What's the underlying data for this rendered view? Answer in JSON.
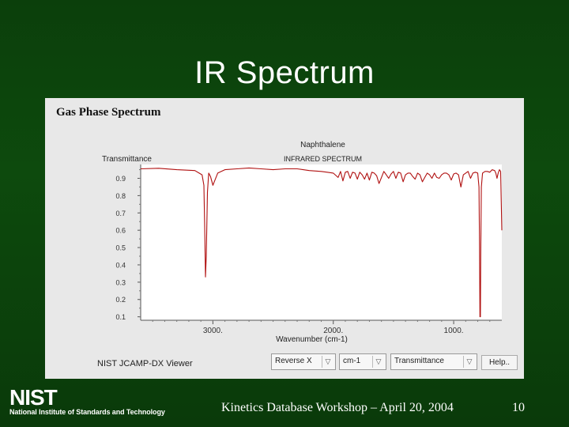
{
  "slide": {
    "title": "IR Spectrum",
    "footer": "Kinetics Database Workshop – April 20, 2004",
    "page_number": "10",
    "logo_text": "NIST",
    "org_name": "National Institute of Standards and Technology"
  },
  "viewer": {
    "title": "Gas Phase Spectrum",
    "compound": "Naphthalene",
    "spectrum_type": "INFRARED SPECTRUM",
    "app_label": "NIST JCAMP-DX Viewer",
    "controls": {
      "direction": "Reverse X",
      "units": "cm-1",
      "mode": "Transmittance",
      "help": "Help.."
    },
    "dropdown_icon": "chevron-down-icon"
  },
  "chart_data": {
    "type": "line",
    "ylabel": "Transmittance",
    "xlabel": "Wavenumber (cm-1)",
    "x_ticks": [
      "3000.",
      "2000.",
      "1000."
    ],
    "y_ticks": [
      "0.9",
      "0.8",
      "0.7",
      "0.6",
      "0.5",
      "0.4",
      "0.3",
      "0.2",
      "0.1"
    ],
    "x_reversed": true,
    "xlim": [
      3600,
      600
    ],
    "ylim": [
      0.08,
      0.98
    ],
    "series_color": "#b01010",
    "x": [
      3600,
      3450,
      3300,
      3150,
      3090,
      3075,
      3068,
      3062,
      3055,
      3045,
      3035,
      3020,
      3000,
      2960,
      2900,
      2800,
      2700,
      2600,
      2500,
      2400,
      2300,
      2200,
      2100,
      2050,
      2000,
      1960,
      1940,
      1920,
      1900,
      1880,
      1860,
      1840,
      1820,
      1800,
      1780,
      1760,
      1740,
      1720,
      1700,
      1680,
      1660,
      1640,
      1620,
      1600,
      1580,
      1560,
      1540,
      1520,
      1500,
      1480,
      1460,
      1440,
      1420,
      1400,
      1380,
      1360,
      1340,
      1320,
      1300,
      1280,
      1260,
      1240,
      1220,
      1200,
      1180,
      1160,
      1140,
      1120,
      1100,
      1080,
      1060,
      1040,
      1020,
      1000,
      980,
      960,
      940,
      920,
      900,
      880,
      860,
      840,
      820,
      800,
      790,
      785,
      782,
      780,
      778,
      775,
      770,
      760,
      740,
      720,
      700,
      680,
      660,
      650,
      640,
      630,
      620,
      610,
      600
    ],
    "y": [
      0.955,
      0.958,
      0.95,
      0.945,
      0.92,
      0.86,
      0.62,
      0.33,
      0.45,
      0.82,
      0.93,
      0.91,
      0.86,
      0.93,
      0.95,
      0.955,
      0.96,
      0.955,
      0.95,
      0.955,
      0.955,
      0.945,
      0.94,
      0.935,
      0.93,
      0.905,
      0.94,
      0.885,
      0.935,
      0.94,
      0.9,
      0.935,
      0.93,
      0.895,
      0.935,
      0.92,
      0.895,
      0.93,
      0.89,
      0.935,
      0.93,
      0.915,
      0.87,
      0.905,
      0.94,
      0.92,
      0.9,
      0.925,
      0.94,
      0.9,
      0.935,
      0.93,
      0.88,
      0.92,
      0.93,
      0.93,
      0.91,
      0.895,
      0.93,
      0.92,
      0.88,
      0.905,
      0.93,
      0.92,
      0.9,
      0.93,
      0.905,
      0.9,
      0.92,
      0.93,
      0.93,
      0.92,
      0.89,
      0.925,
      0.93,
      0.92,
      0.85,
      0.92,
      0.93,
      0.94,
      0.9,
      0.93,
      0.935,
      0.93,
      0.85,
      0.5,
      0.1,
      0.1,
      0.1,
      0.45,
      0.85,
      0.93,
      0.94,
      0.94,
      0.935,
      0.95,
      0.945,
      0.93,
      0.9,
      0.93,
      0.95,
      0.94,
      0.6
    ]
  }
}
